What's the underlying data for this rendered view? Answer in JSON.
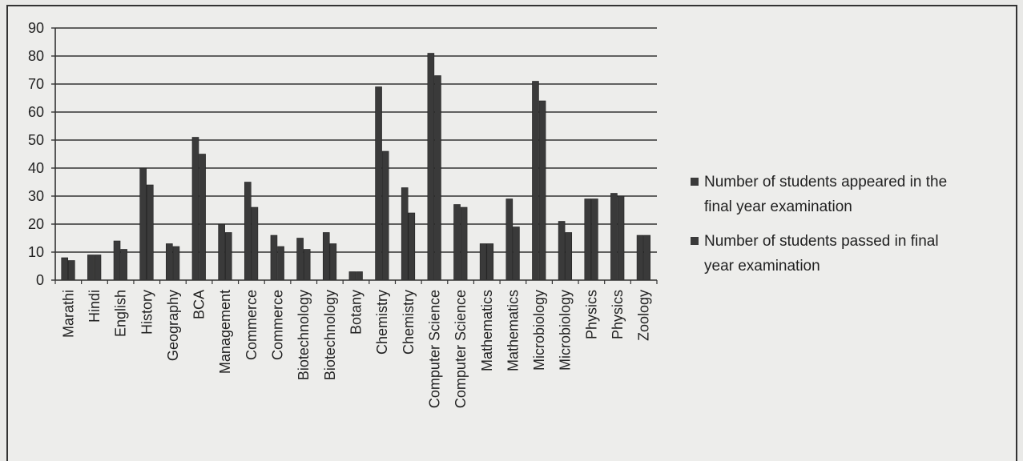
{
  "chart_data": {
    "type": "bar",
    "title": "",
    "xlabel": "",
    "ylabel": "",
    "ylim": [
      0,
      90
    ],
    "yticks": [
      0,
      10,
      20,
      30,
      40,
      50,
      60,
      70,
      80,
      90
    ],
    "grid": true,
    "legend_position": "right",
    "categories": [
      "Marathi",
      "Hindi",
      "English",
      "History",
      "Geography",
      "BCA",
      "Management",
      "Commerce",
      "Commerce",
      "Biotechnology",
      "Biotechnology",
      "Botany",
      "Chemistry",
      "Chemistry",
      "Computer Science",
      "Computer Science",
      "Mathematics",
      "Mathematics",
      "Microbiology",
      "Microbiology",
      "Physics",
      "Physics",
      "Zoology"
    ],
    "series": [
      {
        "name": "Number of students appeared in the final year examination",
        "legend_lines": [
          "Number of students appeared in the",
          "final year examination"
        ],
        "color": "#3a3a3a",
        "values": [
          8,
          9,
          14,
          40,
          13,
          51,
          20,
          35,
          16,
          15,
          17,
          3,
          69,
          33,
          81,
          27,
          13,
          29,
          71,
          21,
          29,
          31,
          16
        ]
      },
      {
        "name": "Number of students passed in final year examination",
        "legend_lines": [
          "Number of students passed in final",
          "year examination"
        ],
        "color": "#3a3a3a",
        "values": [
          7,
          9,
          11,
          34,
          12,
          45,
          17,
          26,
          12,
          11,
          13,
          3,
          46,
          24,
          73,
          26,
          13,
          19,
          64,
          17,
          29,
          30,
          16
        ]
      }
    ]
  }
}
